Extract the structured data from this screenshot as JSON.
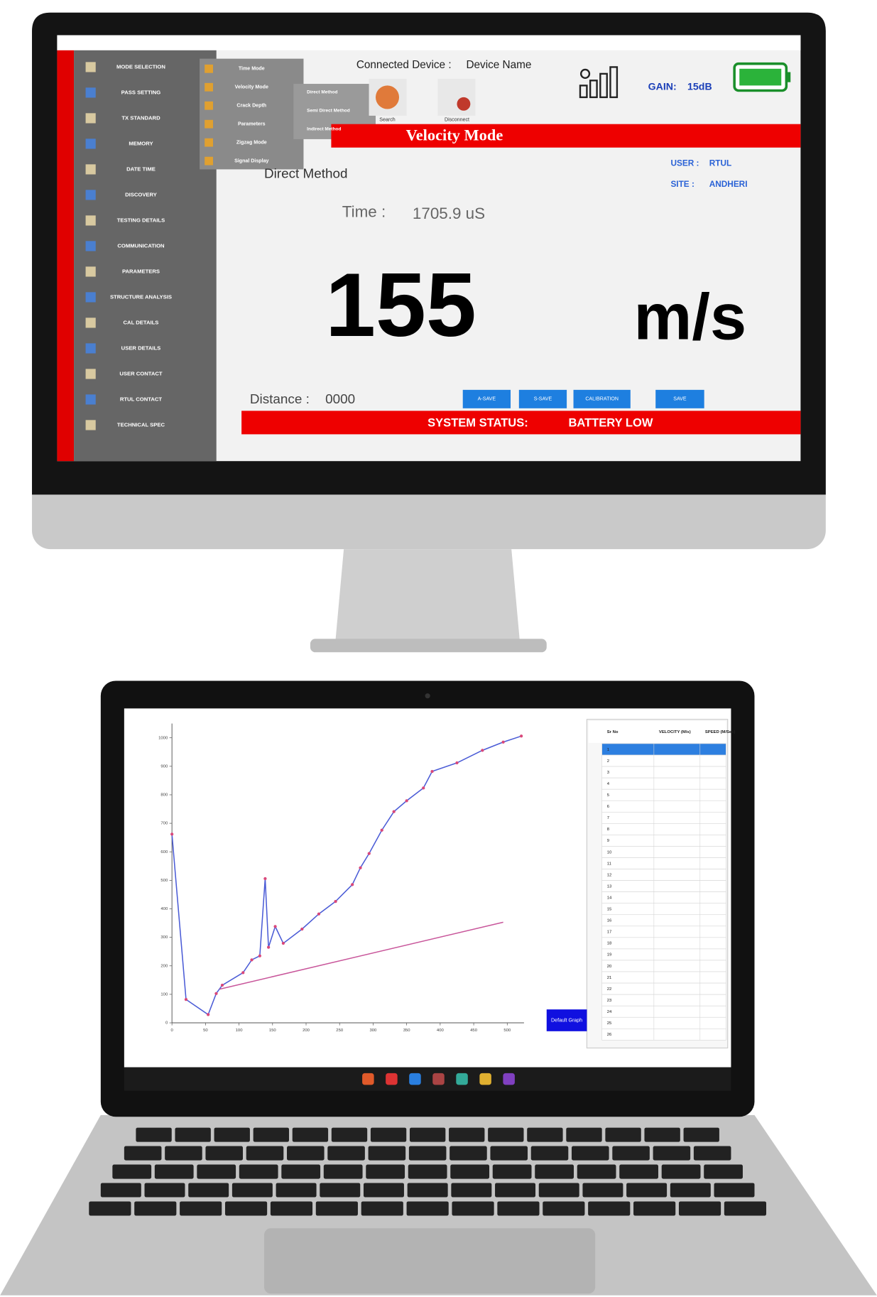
{
  "monitor": {
    "menu": [
      "MODE SELECTION",
      "PASS SETTING",
      "TX STANDARD",
      "MEMORY",
      "DATE TIME",
      "DISCOVERY",
      "TESTING DETAILS",
      "COMMUNICATION",
      "PARAMETERS",
      "STRUCTURE ANALYSIS",
      "CAL DETAILS",
      "USER DETAILS",
      "USER CONTACT",
      "RTUL CONTACT",
      "TECHNICAL SPEC"
    ],
    "submenu": [
      "Time Mode",
      "Velocity Mode",
      "Crack Depth",
      "Parameters",
      "Zigzag Mode",
      "Signal Display"
    ],
    "methods": [
      "Direct Method",
      "Semi Direct Method",
      "Indirect Method"
    ],
    "connected_label": "Connected Device :",
    "device_name": "Device Name",
    "device_buttons": [
      "Search",
      "Disconnect"
    ],
    "gain_label": "GAIN:",
    "gain": "15dB",
    "mode_title": "Velocity Mode",
    "method": "Direct Method",
    "user_label": "USER :",
    "user": "RTUL",
    "site_label": "SITE :",
    "site": "ANDHERI",
    "time_label": "Time :",
    "time": "1705.9 uS",
    "velocity": "155",
    "unit": "m/s",
    "distance_label": "Distance :",
    "distance": "0000",
    "buttons": [
      "A-SAVE",
      "S-SAVE",
      "CALIBRATION",
      "SAVE"
    ],
    "status_label": "SYSTEM STATUS:",
    "status": "BATTERY LOW"
  },
  "laptop": {
    "chart_data": {
      "type": "line",
      "xlim": [
        0,
        525
      ],
      "ylim": [
        0,
        1050
      ],
      "xticks": [
        0,
        50,
        100,
        150,
        200,
        250,
        300,
        350,
        400,
        450,
        500
      ],
      "yticks": [
        0,
        100,
        200,
        300,
        400,
        500,
        600,
        700,
        800,
        900,
        1000
      ],
      "series": [
        {
          "color": "#4a5bd6",
          "marker_color": "#d9487a",
          "x": [
            0,
            21,
            54,
            66,
            75,
            106,
            119,
            131,
            139,
            144,
            154,
            166,
            194,
            219,
            244,
            269,
            281,
            294,
            313,
            331,
            350,
            375,
            388,
            425,
            463,
            494,
            521
          ],
          "values": [
            662,
            82,
            29,
            103,
            132,
            176,
            221,
            235,
            506,
            265,
            338,
            279,
            329,
            382,
            426,
            485,
            544,
            594,
            676,
            741,
            779,
            824,
            882,
            912,
            956,
            985,
            1006
          ]
        },
        {
          "color": "#c8559a",
          "x": [
            71,
            494
          ],
          "values": [
            118,
            353
          ]
        }
      ]
    },
    "button": "Default Graph",
    "table": {
      "headers": [
        "Sr No",
        "VELOCITY (M/s)",
        "SPEED (M/Sec)"
      ],
      "sr": [
        1,
        2,
        3,
        4,
        5,
        6,
        7,
        8,
        9,
        10,
        11,
        12,
        13,
        14,
        15,
        16,
        17,
        18,
        19,
        20,
        21,
        22,
        23,
        24,
        25,
        26
      ]
    }
  }
}
